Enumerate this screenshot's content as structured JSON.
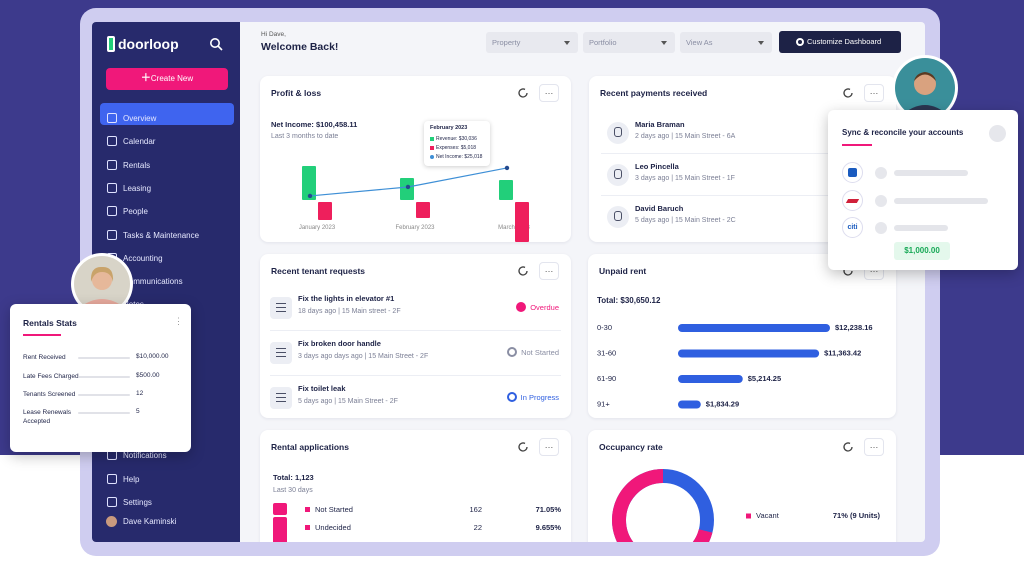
{
  "sidebar": {
    "logo": "doorloop",
    "create": "Create New",
    "nav": [
      "Overview",
      "Calendar",
      "Rentals",
      "Leasing",
      "People",
      "Tasks & Maintenance",
      "Accounting",
      "Communications",
      "Notes",
      "Notifications",
      "Help",
      "Settings"
    ],
    "user": "Dave Kaminski"
  },
  "header": {
    "greeting": "Hi Dave,",
    "title": "Welcome Back!",
    "filters": [
      "Property",
      "Portfolio",
      "View As"
    ],
    "button": "Customize Dashboard"
  },
  "profit_loss": {
    "title": "Profit & loss",
    "net_income": "Net Income: $100,458.11",
    "period": "Last 3 months to date",
    "tooltip": {
      "title": "February 2023",
      "lines": [
        "Revenue: $30,036",
        "Expenses: $5,018",
        "Net Income: $25,018"
      ]
    },
    "chart": {
      "type": "bar",
      "categories": [
        "January 2023",
        "February 2023",
        "March 2023"
      ],
      "series": [
        {
          "color": "#22cf7a",
          "values": [
            46400,
            30036,
            27300
          ]
        },
        {
          "color": "#ee1f5c",
          "values": [
            5650,
            5018,
            12560
          ]
        },
        {
          "color": "#3e8fd6",
          "values": [
            17000,
            25018,
            42000
          ]
        }
      ]
    }
  },
  "payments": {
    "title": "Recent payments received",
    "items": [
      {
        "name": "Maria Braman",
        "detail": "2 days ago | 15 Main Street - 6A"
      },
      {
        "name": "Leo Pincella",
        "detail": "3 days ago | 15 Main Street - 1F"
      },
      {
        "name": "David Baruch",
        "detail": "5 days ago | 15 Main Street - 2C"
      }
    ]
  },
  "sync": {
    "title": "Sync & reconcile your accounts",
    "bank": "citi",
    "amount": "$1,000.00"
  },
  "requests": {
    "title": "Recent tenant requests",
    "items": [
      {
        "title": "Fix the lights in elevator #1",
        "detail": "18 days ago | 15 Main street - 2F",
        "status": "Overdue"
      },
      {
        "title": "Fix broken door handle",
        "detail": "3 days ago days ago | 15 Main Street - 2F",
        "status": "Not Started"
      },
      {
        "title": "Fix toilet leak",
        "detail": "5 days ago | 15 Main Street - 2F",
        "status": "In Progress"
      }
    ]
  },
  "unpaid_rent": {
    "title": "Unpaid rent",
    "total": "Total: $30,650.12",
    "chart": {
      "type": "bar",
      "color": "#2f5fe0",
      "categories": [
        "0-30",
        "31-60",
        "61-90",
        "91+"
      ],
      "values": [
        12238.16,
        11363.42,
        5214.25,
        1834.29
      ],
      "value_labels": [
        "$12,238.16",
        "$11,363.42",
        "$5,214.25",
        "$1,834.29"
      ],
      "xlim": [
        0,
        12238.16
      ]
    }
  },
  "applications": {
    "title": "Rental applications",
    "total": "Total: 1,123",
    "period": "Last 30 days",
    "rows": [
      {
        "status": "Not Started",
        "count": "162",
        "percent": "71.05%"
      },
      {
        "status": "Undecided",
        "count": "22",
        "percent": "9.655%"
      }
    ]
  },
  "occupancy": {
    "title": "Occupancy rate",
    "chart": {
      "type": "pie",
      "categories": [
        "Vacant"
      ],
      "values": [
        71
      ],
      "value_labels": [
        "71% (9 Units)"
      ],
      "colors": [
        "#f0187a"
      ]
    }
  },
  "rentals_stats": {
    "title": "Rentals Stats",
    "rows": [
      {
        "label": "Rent Received",
        "value": "$10,000.00"
      },
      {
        "label": "Late Fees Charged",
        "value": "$500.00"
      },
      {
        "label": "Tenants Screened",
        "value": "12"
      },
      {
        "label": "Lease Renewals Accepted",
        "value": "5"
      }
    ]
  }
}
